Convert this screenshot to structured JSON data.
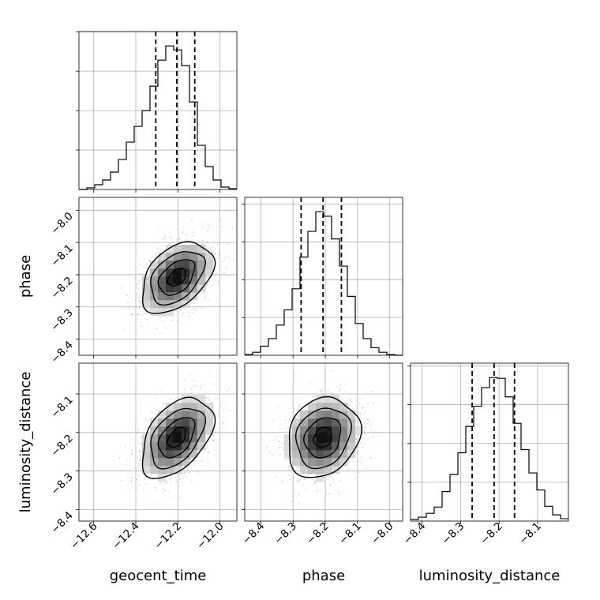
{
  "chart_data": {
    "type": "corner",
    "parameters": [
      "geocent_time",
      "phase",
      "luminosity_distance"
    ],
    "axes": {
      "geocent_time": {
        "label": "geocent_time",
        "range": [
          -12.67,
          -11.92
        ],
        "ticks": [
          -12.6,
          -12.4,
          -12.2,
          -12.0
        ],
        "tick_labels": [
          "−12.6",
          "−12.4",
          "−12.2",
          "−12.0"
        ]
      },
      "phase": {
        "label": "phase",
        "range": [
          -8.45,
          -7.96
        ],
        "ticks": [
          -8.4,
          -8.3,
          -8.2,
          -8.1,
          -8.0
        ],
        "tick_labels": [
          "−8.4",
          "−8.3",
          "−8.2",
          "−8.1",
          "−8.0"
        ]
      },
      "luminosity_distance": {
        "label": "luminosity_distance",
        "range": [
          -8.43,
          -8.02
        ],
        "ticks": [
          -8.4,
          -8.3,
          -8.2,
          -8.1
        ],
        "tick_labels": [
          "−8.4",
          "−8.3",
          "−8.2",
          "−8.1"
        ]
      }
    },
    "marginals": [
      {
        "parameter": "geocent_time",
        "bin_edges": [
          -12.67,
          -12.6325,
          -12.595,
          -12.5575,
          -12.52,
          -12.4825,
          -12.445,
          -12.4075,
          -12.37,
          -12.3325,
          -12.295,
          -12.2575,
          -12.22,
          -12.1825,
          -12.145,
          -12.1075,
          -12.07,
          -12.0325,
          -11.995,
          -11.9575,
          -11.92
        ],
        "counts": [
          0.0,
          2,
          6,
          12,
          22,
          38,
          60,
          80,
          100,
          131,
          164,
          182,
          177,
          157,
          111,
          56,
          29,
          12,
          3,
          1
        ],
        "quantiles": [
          -12.305,
          -12.205,
          -12.12
        ]
      },
      {
        "parameter": "phase",
        "bin_edges": [
          -8.45,
          -8.4255,
          -8.401,
          -8.3765,
          -8.352,
          -8.3275,
          -8.303,
          -8.2785,
          -8.254,
          -8.2295,
          -8.205,
          -8.1805,
          -8.156,
          -8.1315,
          -8.107,
          -8.0825,
          -8.058,
          -8.0335,
          -8.009,
          -7.9845,
          -7.96
        ],
        "counts": [
          1,
          4,
          12,
          22,
          40,
          60,
          88,
          130,
          164,
          190,
          184,
          154,
          118,
          78,
          42,
          22,
          10,
          4,
          1,
          0
        ],
        "quantiles": [
          -8.275,
          -8.207,
          -8.15
        ]
      },
      {
        "parameter": "luminosity_distance",
        "bin_edges": [
          -8.43,
          -8.4095,
          -8.389,
          -8.3685,
          -8.348,
          -8.3275,
          -8.307,
          -8.2865,
          -8.266,
          -8.2455,
          -8.225,
          -8.2045,
          -8.184,
          -8.1635,
          -8.143,
          -8.1225,
          -8.102,
          -8.0815,
          -8.061,
          -8.0405,
          -8.02
        ],
        "counts": [
          2,
          5,
          10,
          18,
          38,
          60,
          88,
          122,
          148,
          172,
          185,
          184,
          160,
          126,
          92,
          62,
          40,
          19,
          8,
          3
        ],
        "quantiles": [
          -8.27,
          -8.213,
          -8.16
        ]
      }
    ],
    "pairs": [
      {
        "x": "geocent_time",
        "y": "phase",
        "mean": [
          -12.205,
          -8.208
        ],
        "sd": [
          0.085,
          0.055
        ],
        "corr": 0.42,
        "contour_levels_sigma": [
          0.5,
          1.0,
          1.5,
          2.0
        ]
      },
      {
        "x": "geocent_time",
        "y": "luminosity_distance",
        "mean": [
          -12.205,
          -8.213
        ],
        "sd": [
          0.085,
          0.052
        ],
        "corr": 0.45,
        "contour_levels_sigma": [
          0.5,
          1.0,
          1.5,
          2.0
        ]
      },
      {
        "x": "phase",
        "y": "luminosity_distance",
        "mean": [
          -8.207,
          -8.213
        ],
        "sd": [
          0.056,
          0.052
        ],
        "corr": 0.18,
        "contour_levels_sigma": [
          0.5,
          1.0,
          1.5,
          2.0
        ]
      }
    ],
    "grid": true
  }
}
